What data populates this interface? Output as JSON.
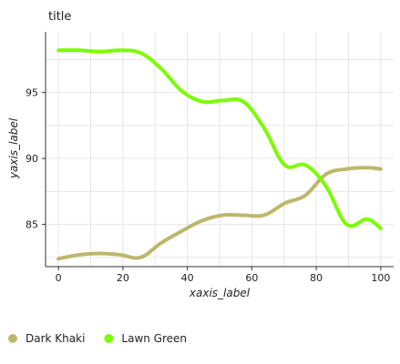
{
  "chart_data": {
    "type": "line",
    "title": "title",
    "xlabel": "xaxis_label",
    "ylabel": "yaxis_label",
    "xlim": [
      -4,
      104
    ],
    "ylim": [
      81.8,
      99.6
    ],
    "x_ticks": [
      0,
      20,
      40,
      60,
      80,
      100
    ],
    "y_ticks": [
      85,
      90,
      95
    ],
    "grid": true,
    "legend_position": "bottom",
    "series": [
      {
        "name": "Dark Khaki",
        "color": "#bdb76b",
        "x": [
          0,
          6.4,
          12.8,
          19.1,
          25.5,
          31.9,
          38.3,
          44.7,
          51.0,
          57.4,
          63.8,
          70.2,
          76.6,
          83.0,
          89.4,
          95.7,
          100
        ],
        "y": [
          82.4,
          82.7,
          82.8,
          82.7,
          82.5,
          83.6,
          84.5,
          85.3,
          85.7,
          85.7,
          85.7,
          86.6,
          87.2,
          88.8,
          89.2,
          89.3,
          89.2
        ]
      },
      {
        "name": "Lawn Green",
        "color": "#7cfc00",
        "x": [
          0,
          6.4,
          12.8,
          19.1,
          25.5,
          31.9,
          38.3,
          44.7,
          51.0,
          57.4,
          63.8,
          70.2,
          76.6,
          83.0,
          89.4,
          95.7,
          100
        ],
        "y": [
          98.2,
          98.2,
          98.1,
          98.2,
          98.0,
          96.8,
          95.1,
          94.3,
          94.4,
          94.3,
          92.3,
          89.5,
          89.5,
          87.9,
          85.0,
          85.4,
          84.7
        ]
      }
    ]
  }
}
